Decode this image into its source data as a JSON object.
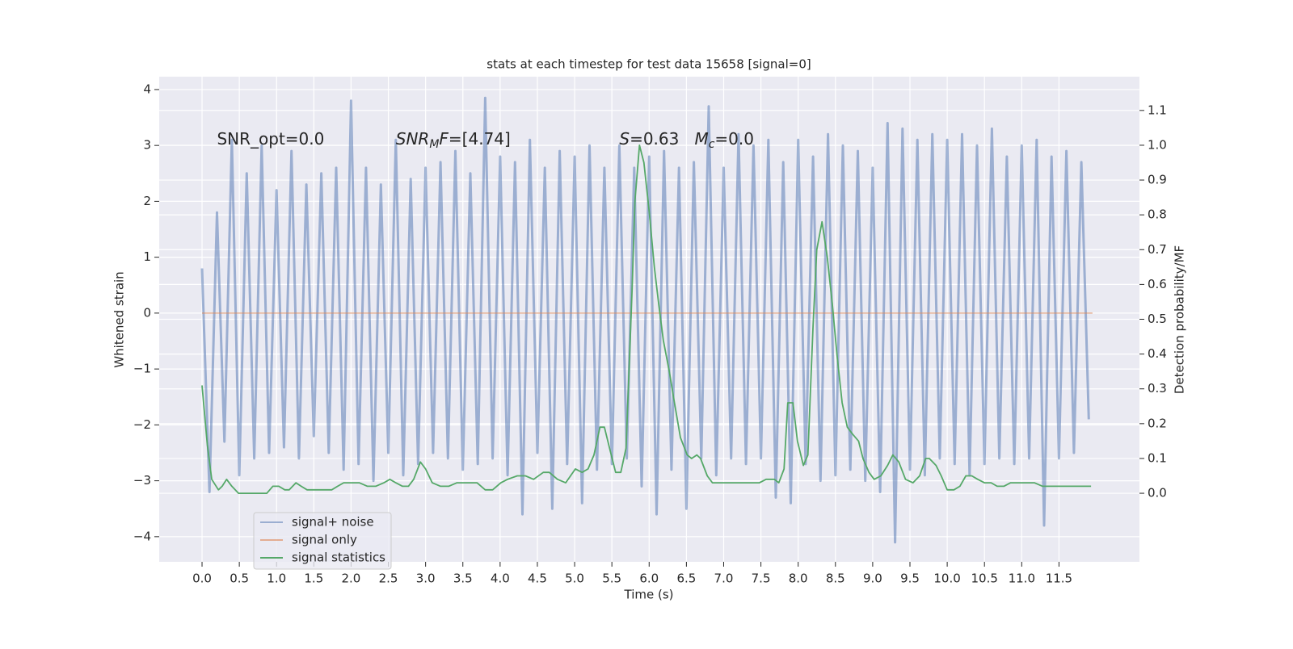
{
  "chart_data": {
    "type": "line",
    "title": "stats at each timestep for test data 15658 [signal=0]",
    "xlabel": "Time (s)",
    "ylabel": "Whitened strain",
    "y2label": "Detection probability/MF",
    "xlim": [
      -0.575,
      12.58
    ],
    "ylim": [
      -4.45,
      4.23
    ],
    "y2lim": [
      -0.197,
      1.197
    ],
    "xticks": [
      {
        "value": 0,
        "label": "0.0"
      },
      0.5,
      {
        "value": 1,
        "label": "1.0"
      },
      1.5,
      {
        "value": 2,
        "label": "2.0"
      },
      2.5,
      {
        "value": 3,
        "label": "3.0"
      },
      3.5,
      {
        "value": 4,
        "label": "4.0"
      },
      4.5,
      {
        "value": 5,
        "label": "5.0"
      },
      5.5,
      {
        "value": 6,
        "label": "6.0"
      },
      6.5,
      {
        "value": 7,
        "label": "7.0"
      },
      7.5,
      {
        "value": 8,
        "label": "8.0"
      },
      8.5,
      {
        "value": 9,
        "label": "9.0"
      },
      9.5,
      {
        "value": 10,
        "label": "10.0"
      },
      10.5,
      {
        "value": 11,
        "label": "11.0"
      },
      11.5
    ],
    "yticks": [
      {
        "value": -4,
        "label": "−4"
      },
      {
        "value": -3,
        "label": "−3"
      },
      {
        "value": -2,
        "label": "−2"
      },
      {
        "value": -1,
        "label": "−1"
      },
      0,
      1,
      2,
      3,
      4
    ],
    "y2ticks": [
      {
        "value": 0,
        "label": "0.0"
      },
      0.1,
      0.2,
      0.3,
      0.4,
      0.5,
      0.6,
      0.7,
      0.8,
      0.9,
      {
        "value": 1,
        "label": "1.0"
      },
      1.1
    ],
    "grid": true,
    "legend": "lower left",
    "annotations": [
      {
        "x": 0.2,
        "y": 3.1,
        "parts": [
          {
            "t": "SNR_opt=0.0"
          }
        ]
      },
      {
        "x": 2.6,
        "y": 3.1,
        "parts": [
          {
            "t": "SNR",
            "italic": true
          },
          {
            "t": "M",
            "italic": true,
            "sub": true
          },
          {
            "t": "F",
            "italic": true
          },
          {
            "t": "=[4.74]"
          }
        ]
      },
      {
        "x": 5.6,
        "y": 3.1,
        "parts": [
          {
            "t": "S",
            "italic": true
          },
          {
            "t": "=0.63   "
          },
          {
            "t": "M",
            "italic": true
          },
          {
            "t": "c",
            "italic": true,
            "sub": true
          },
          {
            "t": "=0.0"
          }
        ]
      }
    ],
    "series": [
      {
        "name": "signal+ noise",
        "color": "#4c72b0",
        "alpha": 0.5,
        "width": 3,
        "x": [
          0,
          0.1,
          0.2,
          0.3,
          0.4,
          0.5,
          0.6,
          0.7,
          0.8,
          0.9,
          1,
          1.1,
          1.2,
          1.3,
          1.4,
          1.5,
          1.6,
          1.7,
          1.8,
          1.9,
          2,
          2.1,
          2.2,
          2.3,
          2.4,
          2.5,
          2.6,
          2.7,
          2.8,
          2.9,
          3,
          3.1,
          3.2,
          3.3,
          3.4,
          3.5,
          3.6,
          3.7,
          3.8,
          3.9,
          4,
          4.1,
          4.2,
          4.3,
          4.4,
          4.5,
          4.6,
          4.7,
          4.8,
          4.9,
          5,
          5.1,
          5.2,
          5.3,
          5.4,
          5.5,
          5.6,
          5.7,
          5.8,
          5.9,
          6,
          6.1,
          6.2,
          6.3,
          6.4,
          6.5,
          6.6,
          6.7,
          6.8,
          6.9,
          7,
          7.1,
          7.2,
          7.3,
          7.4,
          7.5,
          7.6,
          7.7,
          7.8,
          7.9,
          8,
          8.1,
          8.2,
          8.3,
          8.4,
          8.5,
          8.6,
          8.7,
          8.8,
          8.9,
          9,
          9.1,
          9.2,
          9.3,
          9.4,
          9.5,
          9.6,
          9.7,
          9.8,
          9.9,
          10,
          10.1,
          10.2,
          10.3,
          10.4,
          10.5,
          10.6,
          10.7,
          10.8,
          10.9,
          11,
          11.1,
          11.2,
          11.3,
          11.4,
          11.5,
          11.6,
          11.7,
          11.8,
          11.9
        ],
        "values": [
          0.8,
          -3.2,
          1.8,
          -2.3,
          3.1,
          -2.9,
          2.5,
          -2.6,
          3.0,
          -2.5,
          2.2,
          -2.4,
          2.9,
          -2.6,
          2.3,
          -2.2,
          2.5,
          -2.5,
          2.6,
          -2.8,
          3.8,
          -2.7,
          2.6,
          -3.0,
          2.3,
          -2.5,
          3.1,
          -2.9,
          2.4,
          -2.7,
          2.6,
          -2.5,
          2.7,
          -2.6,
          2.9,
          -2.8,
          2.5,
          -2.7,
          3.85,
          -2.6,
          2.8,
          -2.9,
          2.7,
          -3.6,
          3.1,
          -2.5,
          2.6,
          -3.5,
          2.9,
          -2.7,
          2.8,
          -3.4,
          3.0,
          -2.8,
          2.6,
          -2.7,
          3.0,
          -2.6,
          2.6,
          -3.1,
          2.8,
          -3.6,
          2.9,
          -2.8,
          2.6,
          -3.5,
          2.7,
          -2.6,
          3.7,
          -2.9,
          2.6,
          -2.6,
          3.2,
          -2.7,
          3.0,
          -2.6,
          3.1,
          -3.3,
          2.7,
          -3.4,
          3.1,
          -2.7,
          2.8,
          -3.0,
          3.2,
          -2.9,
          3.0,
          -2.8,
          2.9,
          -3.0,
          2.6,
          -3.2,
          3.4,
          -4.1,
          3.3,
          -2.8,
          3.1,
          -2.9,
          3.2,
          -2.6,
          3.1,
          -2.7,
          3.2,
          -2.9,
          3.0,
          -2.7,
          3.3,
          -2.6,
          2.8,
          -2.7,
          3.0,
          -2.6,
          3.1,
          -3.8,
          2.8,
          -2.6,
          2.9,
          -2.5,
          2.7,
          -1.9
        ]
      },
      {
        "name": "signal only",
        "color": "#dd8452",
        "alpha": 0.6,
        "width": 1.5,
        "x": [
          0,
          11.95
        ],
        "values": [
          0,
          0
        ]
      },
      {
        "name": "signal statistics",
        "color": "#55a868",
        "alpha": 1,
        "width": 1.8,
        "axis": "y2",
        "x": [
          0,
          0.07,
          0.13,
          0.22,
          0.27,
          0.33,
          0.4,
          0.49,
          0.6,
          0.67,
          0.78,
          0.87,
          0.95,
          1.03,
          1.11,
          1.17,
          1.26,
          1.33,
          1.41,
          1.52,
          1.63,
          1.74,
          1.82,
          1.9,
          2.01,
          2.11,
          2.22,
          2.33,
          2.44,
          2.52,
          2.6,
          2.69,
          2.77,
          2.84,
          2.93,
          3.0,
          3.09,
          3.2,
          3.31,
          3.42,
          3.56,
          3.69,
          3.8,
          3.9,
          4.01,
          4.1,
          4.23,
          4.34,
          4.45,
          4.58,
          4.66,
          4.77,
          4.88,
          5.01,
          5.1,
          5.18,
          5.26,
          5.34,
          5.4,
          5.48,
          5.55,
          5.62,
          5.69,
          5.77,
          5.81,
          5.87,
          5.93,
          6.0,
          6.07,
          6.13,
          6.19,
          6.27,
          6.34,
          6.42,
          6.51,
          6.57,
          6.64,
          6.69,
          6.78,
          6.85,
          6.94,
          7.05,
          7.16,
          7.27,
          7.38,
          7.48,
          7.57,
          7.68,
          7.74,
          7.81,
          7.86,
          7.93,
          7.99,
          8.07,
          8.13,
          8.2,
          8.25,
          8.32,
          8.39,
          8.46,
          8.52,
          8.59,
          8.66,
          8.73,
          8.81,
          8.87,
          8.95,
          9.02,
          9.11,
          9.2,
          9.27,
          9.35,
          9.44,
          9.54,
          9.63,
          9.71,
          9.76,
          9.85,
          9.92,
          10.0,
          10.09,
          10.17,
          10.25,
          10.33,
          10.41,
          10.5,
          10.59,
          10.67,
          10.76,
          10.85,
          10.95,
          11.06,
          11.17,
          11.28,
          11.39,
          11.5,
          11.61,
          11.71,
          11.82,
          11.93
        ],
        "values": [
          0.31,
          0.14,
          0.04,
          0.01,
          0.02,
          0.04,
          0.02,
          0.0,
          0.0,
          0.0,
          0.0,
          0.0,
          0.02,
          0.02,
          0.01,
          0.01,
          0.03,
          0.02,
          0.01,
          0.01,
          0.01,
          0.01,
          0.02,
          0.03,
          0.03,
          0.03,
          0.02,
          0.02,
          0.03,
          0.04,
          0.03,
          0.02,
          0.02,
          0.04,
          0.09,
          0.07,
          0.03,
          0.02,
          0.02,
          0.03,
          0.03,
          0.03,
          0.01,
          0.01,
          0.03,
          0.04,
          0.05,
          0.05,
          0.04,
          0.06,
          0.06,
          0.04,
          0.03,
          0.07,
          0.06,
          0.07,
          0.11,
          0.19,
          0.19,
          0.12,
          0.06,
          0.06,
          0.13,
          0.58,
          0.84,
          1.0,
          0.95,
          0.81,
          0.65,
          0.54,
          0.44,
          0.35,
          0.26,
          0.16,
          0.11,
          0.1,
          0.11,
          0.1,
          0.05,
          0.03,
          0.03,
          0.03,
          0.03,
          0.03,
          0.03,
          0.03,
          0.04,
          0.04,
          0.03,
          0.07,
          0.26,
          0.26,
          0.15,
          0.08,
          0.11,
          0.48,
          0.7,
          0.78,
          0.68,
          0.54,
          0.4,
          0.26,
          0.19,
          0.17,
          0.15,
          0.1,
          0.06,
          0.04,
          0.05,
          0.08,
          0.11,
          0.09,
          0.04,
          0.03,
          0.05,
          0.1,
          0.1,
          0.08,
          0.05,
          0.01,
          0.01,
          0.02,
          0.05,
          0.05,
          0.04,
          0.03,
          0.03,
          0.02,
          0.02,
          0.03,
          0.03,
          0.03,
          0.03,
          0.02,
          0.02,
          0.02,
          0.02,
          0.02,
          0.02,
          0.02
        ]
      }
    ]
  }
}
